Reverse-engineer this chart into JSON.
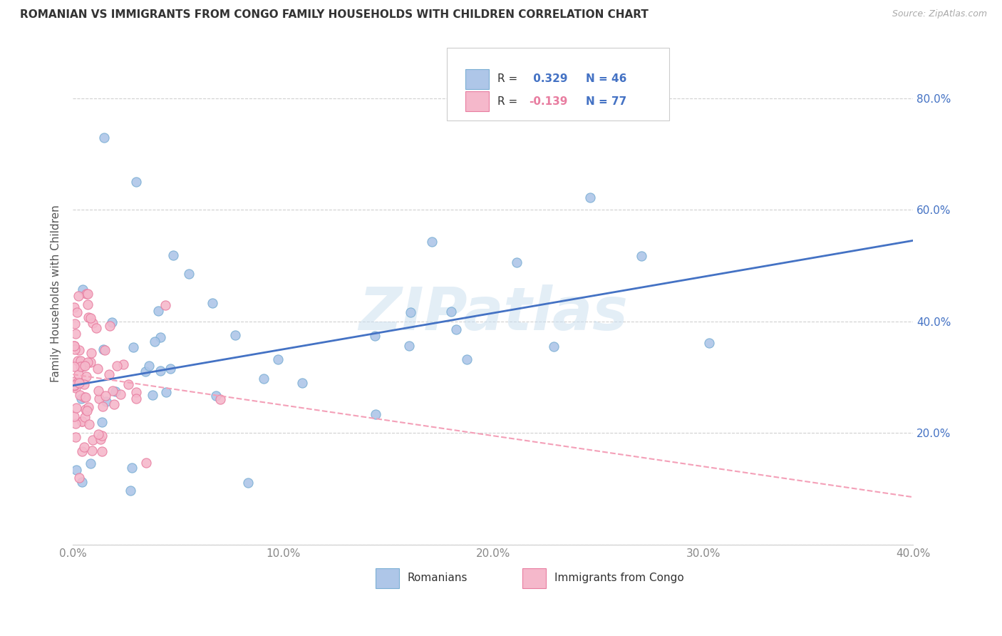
{
  "title": "ROMANIAN VS IMMIGRANTS FROM CONGO FAMILY HOUSEHOLDS WITH CHILDREN CORRELATION CHART",
  "source": "Source: ZipAtlas.com",
  "ylabel": "Family Households with Children",
  "watermark": "ZIPatlas",
  "xlim": [
    0.0,
    0.4
  ],
  "ylim": [
    0.0,
    0.9
  ],
  "xticks": [
    0.0,
    0.1,
    0.2,
    0.3,
    0.4
  ],
  "yticks": [
    0.0,
    0.2,
    0.4,
    0.6,
    0.8
  ],
  "ytick_labels_right": [
    "",
    "20.0%",
    "40.0%",
    "60.0%",
    "80.0%"
  ],
  "xtick_labels": [
    "0.0%",
    "10.0%",
    "20.0%",
    "30.0%",
    "40.0%"
  ],
  "romanian_color": "#aec6e8",
  "congo_color": "#f5b8cb",
  "romanian_edge": "#7bafd4",
  "congo_edge": "#e87da0",
  "line_romanian_color": "#4472c4",
  "line_congo_color": "#f4a0b8",
  "R_romanian": 0.329,
  "N_romanian": 46,
  "R_congo": -0.139,
  "N_congo": 77,
  "legend_label_romanian": "Romanians",
  "legend_label_congo": "Immigrants from Congo",
  "rom_line_x0": 0.0,
  "rom_line_y0": 0.285,
  "rom_line_x1": 0.4,
  "rom_line_y1": 0.545,
  "con_line_x0": 0.0,
  "con_line_y0": 0.305,
  "con_line_x1": 0.4,
  "con_line_y1": 0.085,
  "title_fontsize": 11,
  "source_fontsize": 9,
  "tick_fontsize": 11,
  "ylabel_fontsize": 11
}
